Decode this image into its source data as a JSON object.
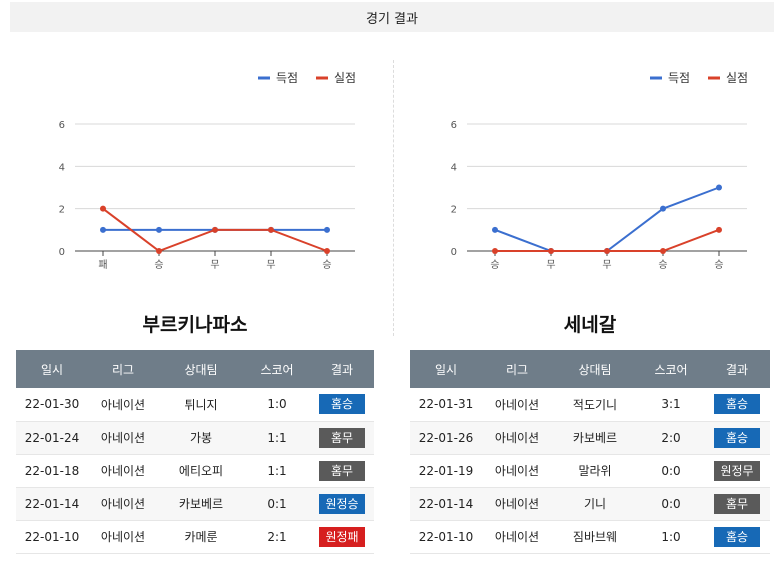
{
  "page": {
    "title": "경기 결과"
  },
  "colors": {
    "scored": "#3b6fcf",
    "conceded": "#d9412a",
    "win": "#1769b6",
    "draw": "#5a5a5a",
    "loss": "#d61f1f"
  },
  "legend": {
    "scored": "득점",
    "conceded": "실점"
  },
  "chart_data": [
    {
      "type": "line",
      "categories": [
        "패",
        "승",
        "무",
        "무",
        "승"
      ],
      "series": [
        {
          "name": "득점",
          "values": [
            1,
            1,
            1,
            1,
            1
          ]
        },
        {
          "name": "실점",
          "values": [
            2,
            0,
            1,
            1,
            0
          ]
        }
      ],
      "ylim": [
        0,
        6
      ],
      "yticks": [
        0,
        2,
        4,
        6
      ],
      "grid": true,
      "legend_position": "top-right"
    },
    {
      "type": "line",
      "categories": [
        "승",
        "무",
        "무",
        "승",
        "승"
      ],
      "series": [
        {
          "name": "득점",
          "values": [
            1,
            0,
            0,
            2,
            3
          ]
        },
        {
          "name": "실점",
          "values": [
            0,
            0,
            0,
            0,
            1
          ]
        }
      ],
      "ylim": [
        0,
        6
      ],
      "yticks": [
        0,
        2,
        4,
        6
      ],
      "grid": true,
      "legend_position": "top-right"
    }
  ],
  "columns": [
    "일시",
    "리그",
    "상대팀",
    "스코어",
    "결과"
  ],
  "teams": [
    {
      "name": "부르키나파소",
      "matches": [
        {
          "date": "22-01-30",
          "league": "아네이션",
          "opponent": "튀니지",
          "score": "1:0",
          "result": "홈승",
          "type": "win"
        },
        {
          "date": "22-01-24",
          "league": "아네이션",
          "opponent": "가봉",
          "score": "1:1",
          "result": "홈무",
          "type": "draw"
        },
        {
          "date": "22-01-18",
          "league": "아네이션",
          "opponent": "에티오피",
          "score": "1:1",
          "result": "홈무",
          "type": "draw"
        },
        {
          "date": "22-01-14",
          "league": "아네이션",
          "opponent": "카보베르",
          "score": "0:1",
          "result": "원정승",
          "type": "win"
        },
        {
          "date": "22-01-10",
          "league": "아네이션",
          "opponent": "카메룬",
          "score": "2:1",
          "result": "원정패",
          "type": "loss"
        }
      ]
    },
    {
      "name": "세네갈",
      "matches": [
        {
          "date": "22-01-31",
          "league": "아네이션",
          "opponent": "적도기니",
          "score": "3:1",
          "result": "홈승",
          "type": "win"
        },
        {
          "date": "22-01-26",
          "league": "아네이션",
          "opponent": "카보베르",
          "score": "2:0",
          "result": "홈승",
          "type": "win"
        },
        {
          "date": "22-01-19",
          "league": "아네이션",
          "opponent": "말라위",
          "score": "0:0",
          "result": "원정무",
          "type": "draw"
        },
        {
          "date": "22-01-14",
          "league": "아네이션",
          "opponent": "기니",
          "score": "0:0",
          "result": "홈무",
          "type": "draw"
        },
        {
          "date": "22-01-10",
          "league": "아네이션",
          "opponent": "짐바브웨",
          "score": "1:0",
          "result": "홈승",
          "type": "win"
        }
      ]
    }
  ]
}
